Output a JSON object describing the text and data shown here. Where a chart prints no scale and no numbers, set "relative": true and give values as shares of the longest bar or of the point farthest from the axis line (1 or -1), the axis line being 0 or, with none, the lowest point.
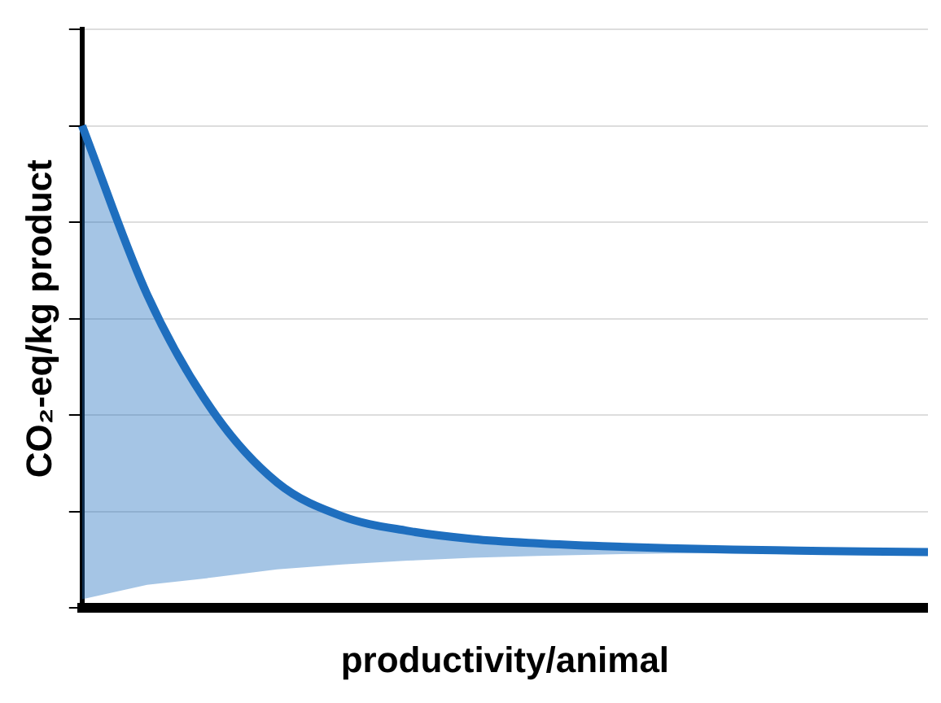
{
  "chart_data": {
    "type": "line",
    "relative": true,
    "xlabel": "productivity/animal",
    "ylabel": "CO₂-eq/kg product",
    "categories": [
      null,
      null,
      null,
      null,
      null,
      null,
      null,
      null,
      null,
      null,
      null,
      null,
      null,
      null
    ],
    "series": [
      {
        "color": "#1f6fbf",
        "values": [
          1.0,
          0.65,
          0.41,
          0.26,
          0.19,
          0.16,
          0.143,
          0.134,
          0.128,
          0.124,
          0.121,
          0.119,
          0.117,
          0.116
        ],
        "lower": [
          0.018,
          0.048,
          0.063,
          0.08,
          0.09,
          0.098,
          0.104,
          0.108,
          0.111,
          0.113,
          0.114,
          0.115,
          0.116,
          0.116
        ],
        "upper": [
          1.0,
          0.65,
          0.41,
          0.26,
          0.19,
          0.16,
          0.143,
          0.134,
          0.128,
          0.124,
          0.121,
          0.119,
          0.117,
          0.116
        ]
      }
    ],
    "grid": "y",
    "legend": false,
    "marker": "none",
    "line_style": "solid"
  }
}
